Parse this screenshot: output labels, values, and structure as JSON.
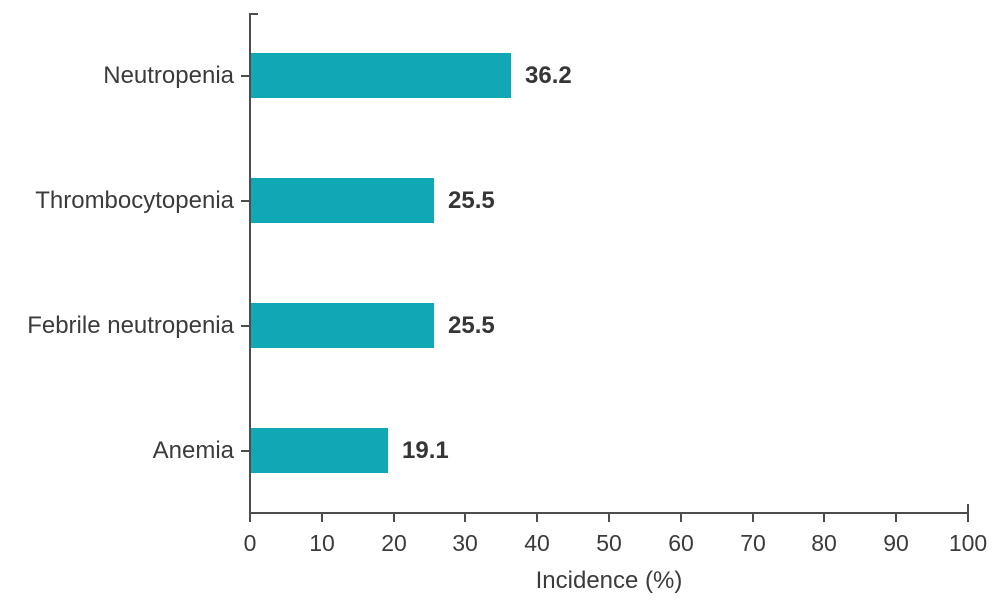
{
  "chart_data": {
    "type": "bar",
    "orientation": "horizontal",
    "title": "",
    "xlabel": "Incidence (%)",
    "ylabel": "",
    "categories": [
      "Neutropenia",
      "Thrombocytopenia",
      "Febrile neutropenia",
      "Anemia"
    ],
    "values": [
      36.2,
      25.5,
      25.5,
      19.1
    ],
    "value_labels": [
      "36.2",
      "25.5",
      "25.5",
      "19.1"
    ],
    "xlim": [
      0,
      100
    ],
    "xticks": [
      0,
      10,
      20,
      30,
      40,
      50,
      60,
      70,
      80,
      90,
      100
    ],
    "xtick_labels": [
      "0",
      "10",
      "20",
      "30",
      "40",
      "50",
      "60",
      "70",
      "80",
      "90",
      "100"
    ],
    "grid": false,
    "legend": null,
    "bar_color": "#0fa8b4",
    "axis_color": "#4d4d4d",
    "text_color": "#3b3b3b",
    "value_label_color": "#363636",
    "background_color": "#ffffff"
  }
}
